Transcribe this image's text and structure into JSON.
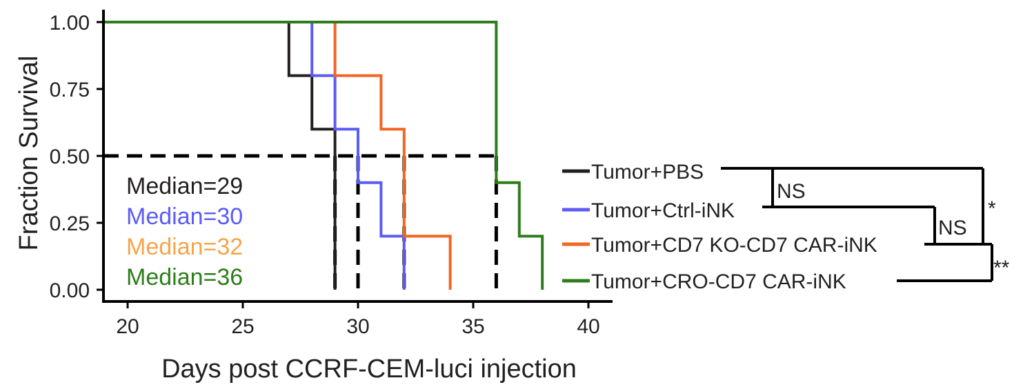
{
  "chart_data": {
    "type": "line",
    "title": "",
    "xlabel": "Days post CCRF-CEM-luci injection",
    "ylabel": "Fraction Survival",
    "xlim": [
      19,
      41
    ],
    "ylim": [
      0,
      1
    ],
    "xticks": [
      "20",
      "25",
      "30",
      "35",
      "40"
    ],
    "yticks": [
      "0.00",
      "0.25",
      "0.50",
      "0.75",
      "1.00"
    ],
    "grid": false,
    "legend_position": "right",
    "median_line_y": 0.5,
    "series": [
      {
        "name": "Tumor+PBS",
        "color": "#231f20",
        "x": [
          19,
          27,
          28,
          29
        ],
        "y": [
          1.0,
          0.8,
          0.6,
          0.0
        ],
        "median_label": "Median=29",
        "median_x": 29
      },
      {
        "name": "Tumor+Ctrl-iNK",
        "color": "#5b5bf5",
        "x": [
          19,
          28,
          29,
          30,
          31,
          32
        ],
        "y": [
          1.0,
          0.8,
          0.6,
          0.4,
          0.2,
          0.0
        ],
        "median_label": "Median=30",
        "median_x": 30
      },
      {
        "name": "Tumor+CD7 KO-CD7 CAR-iNK",
        "color": "#f26522",
        "x": [
          19,
          29,
          31,
          32,
          34
        ],
        "y": [
          1.0,
          0.8,
          0.6,
          0.2,
          0.0
        ],
        "median_label": "Median=32",
        "median_color": "#f7a44a",
        "median_x": 32
      },
      {
        "name": "Tumor+CRO-CD7 CAR-iNK",
        "color": "#2d7d1b",
        "x": [
          19,
          36,
          37,
          38
        ],
        "y": [
          1.0,
          0.4,
          0.2,
          0.0
        ],
        "median_label": "Median=36",
        "median_x": 36
      }
    ],
    "comparisons": [
      {
        "groups": [
          "Tumor+PBS",
          "Tumor+Ctrl-iNK"
        ],
        "label": "NS"
      },
      {
        "groups": [
          "Tumor+Ctrl-iNK",
          "Tumor+CD7 KO-CD7 CAR-iNK"
        ],
        "label": "NS"
      },
      {
        "groups": [
          "Tumor+PBS",
          "Tumor+CD7 KO-CD7 CAR-iNK"
        ],
        "label": "*"
      },
      {
        "groups": [
          "Tumor+CD7 KO-CD7 CAR-iNK",
          "Tumor+CRO-CD7 CAR-iNK"
        ],
        "label": "**"
      }
    ]
  }
}
